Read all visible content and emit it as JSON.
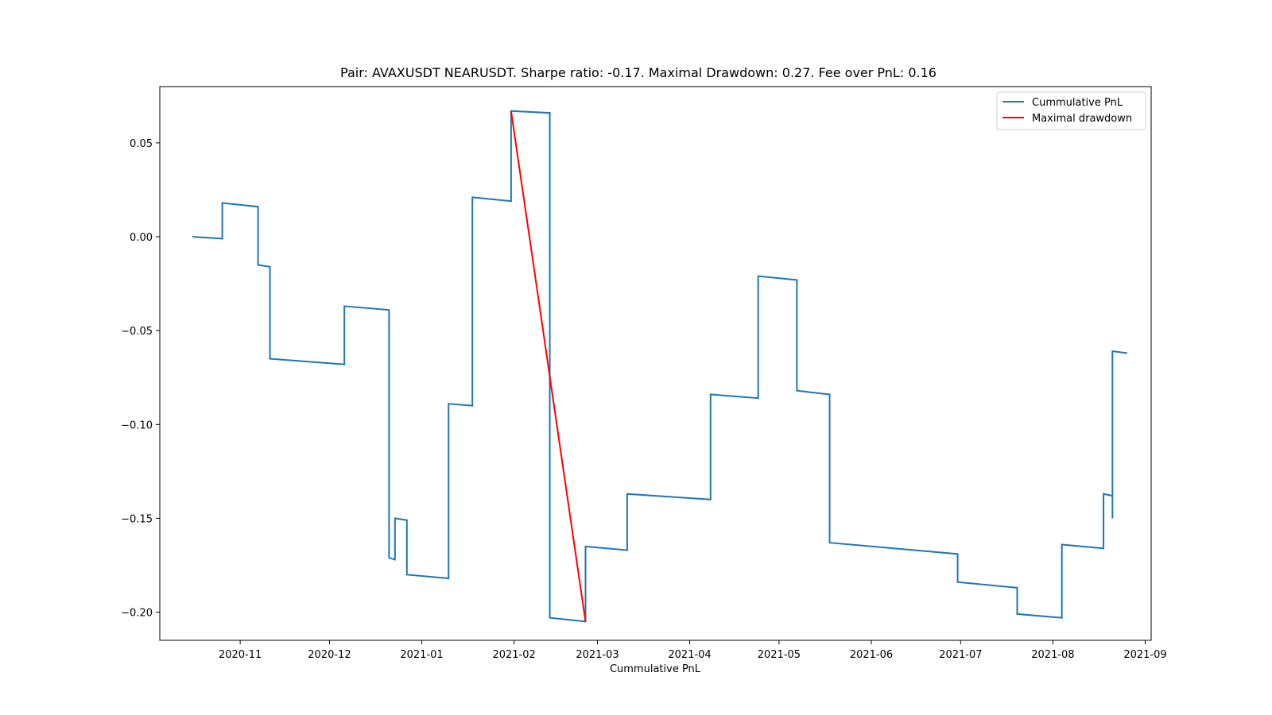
{
  "chart_data": {
    "type": "line",
    "title": "Pair: AVAXUSDT NEARUSDT. Sharpe ratio: -0.17. Maximal Drawdown: 0.27. Fee over PnL: 0.16",
    "xlabel": "Cummulative PnL",
    "ylabel": "",
    "xlim": [
      "2020-10-05",
      "2021-09-03"
    ],
    "ylim": [
      -0.215,
      0.08
    ],
    "x_ticks": [
      "2020-11",
      "2020-12",
      "2021-01",
      "2021-02",
      "2021-03",
      "2021-04",
      "2021-05",
      "2021-06",
      "2021-07",
      "2021-08",
      "2021-09"
    ],
    "y_ticks": [
      0.05,
      0.0,
      -0.05,
      -0.1,
      -0.15,
      -0.2
    ],
    "y_tick_labels": [
      "0.05",
      "0.00",
      "−0.05",
      "−0.10",
      "−0.15",
      "−0.20"
    ],
    "grid": false,
    "legend": "top-right",
    "series": [
      {
        "name": "Cummulative PnL",
        "color": "#1f77b4",
        "x": [
          "2020-10-16",
          "2020-10-26",
          "2020-10-26",
          "2020-11-07",
          "2020-11-07",
          "2020-11-11",
          "2020-11-11",
          "2020-12-06",
          "2020-12-06",
          "2020-12-21",
          "2020-12-21",
          "2020-12-23",
          "2020-12-23",
          "2020-12-27",
          "2020-12-27",
          "2021-01-10",
          "2021-01-10",
          "2021-01-18",
          "2021-01-18",
          "2021-01-31",
          "2021-01-31",
          "2021-02-13",
          "2021-02-13",
          "2021-02-25",
          "2021-02-25",
          "2021-03-11",
          "2021-03-11",
          "2021-04-08",
          "2021-04-08",
          "2021-04-24",
          "2021-04-24",
          "2021-05-07",
          "2021-05-07",
          "2021-05-18",
          "2021-05-18",
          "2021-06-30",
          "2021-06-30",
          "2021-07-20",
          "2021-07-20",
          "2021-08-04",
          "2021-08-04",
          "2021-08-18",
          "2021-08-18",
          "2021-08-21",
          "2021-08-21",
          "2021-08-21",
          "2021-08-21",
          "2021-08-26"
        ],
        "y": [
          0.0,
          -0.001,
          0.018,
          0.016,
          -0.015,
          -0.016,
          -0.065,
          -0.068,
          -0.037,
          -0.039,
          -0.171,
          -0.172,
          -0.15,
          -0.151,
          -0.18,
          -0.182,
          -0.089,
          -0.09,
          0.021,
          0.019,
          0.067,
          0.066,
          -0.203,
          -0.205,
          -0.165,
          -0.167,
          -0.137,
          -0.14,
          -0.084,
          -0.086,
          -0.021,
          -0.023,
          -0.082,
          -0.084,
          -0.163,
          -0.169,
          -0.184,
          -0.187,
          -0.201,
          -0.203,
          -0.164,
          -0.166,
          -0.137,
          -0.138,
          -0.15,
          -0.061,
          -0.061,
          -0.062
        ]
      },
      {
        "name": "Maximal drawdown",
        "color": "#ff0000",
        "x": [
          "2021-01-31",
          "2021-02-25"
        ],
        "y": [
          0.067,
          -0.205
        ]
      }
    ]
  }
}
